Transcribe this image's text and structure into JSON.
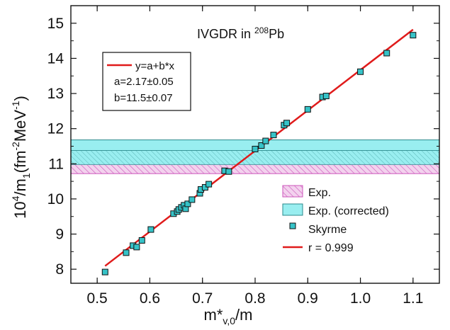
{
  "chart_data": {
    "type": "scatter",
    "title": "IVGDR in 208Pb",
    "title_parts": {
      "prefix": "IVGDR in ",
      "mass": "208",
      "element": "Pb"
    },
    "xlabel": "m*v,0/m",
    "xlabel_parts": {
      "main": "m*",
      "sub": "v,0",
      "tail": "/m"
    },
    "ylabel": "10^4/m1 (fm^-2 MeV^-1)",
    "ylabel_parts": {
      "a": "10",
      "b": "4",
      "c": "/m",
      "d": "1",
      "e": "(fm",
      "f": "-2",
      "g": "MeV",
      "h": "-1",
      "i": ")"
    },
    "xlim": [
      0.45,
      1.15
    ],
    "ylim": [
      7.6,
      15.5
    ],
    "x_ticks": [
      "0.5",
      "0.6",
      "0.7",
      "0.8",
      "0.9",
      "1.0",
      "1.1"
    ],
    "y_ticks": [
      "8",
      "9",
      "10",
      "11",
      "12",
      "13",
      "14",
      "15"
    ],
    "grid": false,
    "fit_box": {
      "equation": "y=a+b*x",
      "a_text": "a=2.17±0.05",
      "b_text": "b=11.5±0.07"
    },
    "fit": {
      "a": 2.17,
      "b": 11.5,
      "x_range": [
        0.515,
        1.1
      ]
    },
    "bands": [
      {
        "name": "Exp.",
        "y_range": [
          10.72,
          10.98
        ]
      },
      {
        "name": "Exp. (corrected)",
        "y_range": [
          10.98,
          11.68
        ]
      }
    ],
    "series": [
      {
        "name": "Skyrme",
        "points": [
          [
            0.515,
            7.92
          ],
          [
            0.555,
            8.47
          ],
          [
            0.568,
            8.67
          ],
          [
            0.575,
            8.63
          ],
          [
            0.585,
            8.82
          ],
          [
            0.602,
            9.13
          ],
          [
            0.645,
            9.58
          ],
          [
            0.652,
            9.64
          ],
          [
            0.655,
            9.7
          ],
          [
            0.66,
            9.76
          ],
          [
            0.665,
            9.82
          ],
          [
            0.668,
            9.72
          ],
          [
            0.672,
            9.86
          ],
          [
            0.68,
            9.98
          ],
          [
            0.695,
            10.16
          ],
          [
            0.697,
            10.27
          ],
          [
            0.705,
            10.33
          ],
          [
            0.712,
            10.42
          ],
          [
            0.742,
            10.8
          ],
          [
            0.75,
            10.78
          ],
          [
            0.8,
            11.42
          ],
          [
            0.812,
            11.52
          ],
          [
            0.82,
            11.65
          ],
          [
            0.835,
            11.82
          ],
          [
            0.855,
            12.1
          ],
          [
            0.86,
            12.16
          ],
          [
            0.9,
            12.55
          ],
          [
            0.928,
            12.9
          ],
          [
            0.935,
            12.93
          ],
          [
            1.0,
            13.62
          ],
          [
            1.05,
            14.15
          ],
          [
            1.1,
            14.66
          ]
        ]
      }
    ],
    "legend": {
      "position": "bottom-right",
      "items": [
        {
          "label": "Exp."
        },
        {
          "label": "Exp. (corrected)"
        },
        {
          "label": "Skyrme"
        },
        {
          "label": "r = 0.999"
        }
      ]
    },
    "colors": {
      "exp": "#cc55bb",
      "exp_fill": "#f3d2ee",
      "corrected": "#99eef0",
      "corrected_edge": "#2a8a8c",
      "point": "#36c3c8",
      "fit": "#e01b1b",
      "axis": "#111111"
    }
  }
}
